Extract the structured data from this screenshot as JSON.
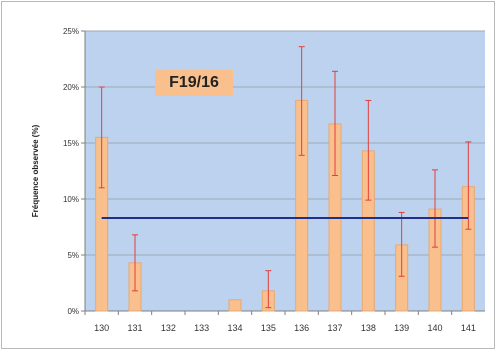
{
  "chart_data": {
    "type": "bar",
    "title": "F19/16",
    "ylabel": "Fréquence observée (%)",
    "xlabel": "",
    "ylim": [
      0,
      25
    ],
    "yticks": [
      "0%",
      "5%",
      "10%",
      "15%",
      "20%",
      "25%"
    ],
    "ytick_values": [
      0,
      5,
      10,
      15,
      20,
      25
    ],
    "categories": [
      "130",
      "131",
      "132",
      "133",
      "134",
      "135",
      "136",
      "137",
      "138",
      "139",
      "140",
      "141"
    ],
    "values": [
      15.5,
      4.3,
      0,
      0,
      1.0,
      1.8,
      18.8,
      16.7,
      14.3,
      5.9,
      9.1,
      11.1
    ],
    "error_low": [
      11.0,
      1.8,
      0,
      0,
      1.0,
      0.3,
      13.9,
      12.1,
      9.9,
      3.1,
      5.7,
      7.3
    ],
    "error_high": [
      20.0,
      6.8,
      0,
      0,
      1.0,
      3.6,
      23.6,
      21.4,
      18.8,
      8.8,
      12.6,
      15.1
    ],
    "reference_line": 8.3,
    "grid": true,
    "colors": {
      "plot_background": "#bcd2ee",
      "bar_fill": "#f9c08d",
      "bar_stroke": "#e8a874",
      "error_bar": "#e0403a",
      "reference_line": "#1f2f8a",
      "gridline": "#9fa9b6"
    }
  }
}
